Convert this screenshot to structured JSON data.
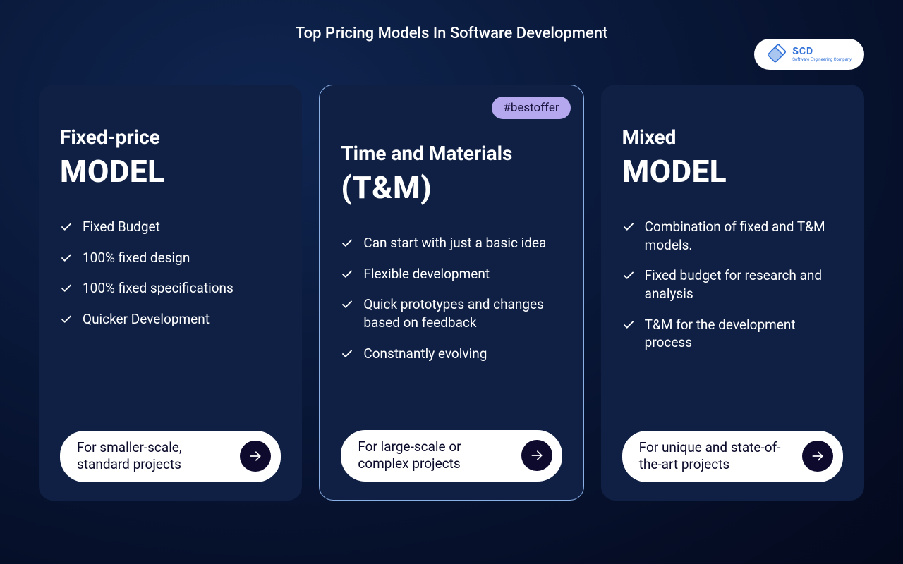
{
  "header": {
    "title": "Top Pricing Models In Software Development"
  },
  "logo": {
    "main": "SCD",
    "sub": "Software Engineering Company",
    "color": "#2e6fd8"
  },
  "colors": {
    "bg_start": "#0f2550",
    "bg_mid": "#071330",
    "bg_end": "#04091d",
    "card_bg": "#0f2044",
    "card_border": "#8ab0e6",
    "text": "#ffffff",
    "badge_bg": "#b5a8ee",
    "badge_text": "#15113a",
    "pill_bg": "#ffffff",
    "pill_text": "#0a0a2a",
    "arrow_bg": "#0d0a2e"
  },
  "typography": {
    "title_fontsize": 22,
    "heading1_fontsize": 28,
    "heading2_fontsize": 44,
    "feature_fontsize": 19,
    "footer_fontsize": 19,
    "badge_fontsize": 17
  },
  "layout": {
    "card_radius": 20,
    "card_gap": 24,
    "card_padding": "36px 30px 26px"
  },
  "cards": [
    {
      "highlighted": false,
      "badge": null,
      "heading1": "Fixed-price",
      "heading2": "MODEL",
      "features": [
        "Fixed Budget",
        " 100% fixed design",
        " 100% fixed specifications",
        "Quicker Development"
      ],
      "footer": "For smaller-scale, standard projects"
    },
    {
      "highlighted": true,
      "badge": "#bestoffer",
      "heading1": "Time and Materials",
      "heading2": "(T&M)",
      "features": [
        "Can start with just a basic idea",
        " Flexible development",
        "Quick prototypes and changes based on feedback",
        "Constnantly evolving"
      ],
      "footer": "For large-scale or complex projects"
    },
    {
      "highlighted": false,
      "badge": null,
      "heading1": " Mixed",
      "heading2": "MODEL",
      "features": [
        "Combination of fixed and T&M models.",
        "Fixed budget for research and analysis",
        "T&M for the development process"
      ],
      "footer": "For unique and state-of-the-art projects"
    }
  ]
}
